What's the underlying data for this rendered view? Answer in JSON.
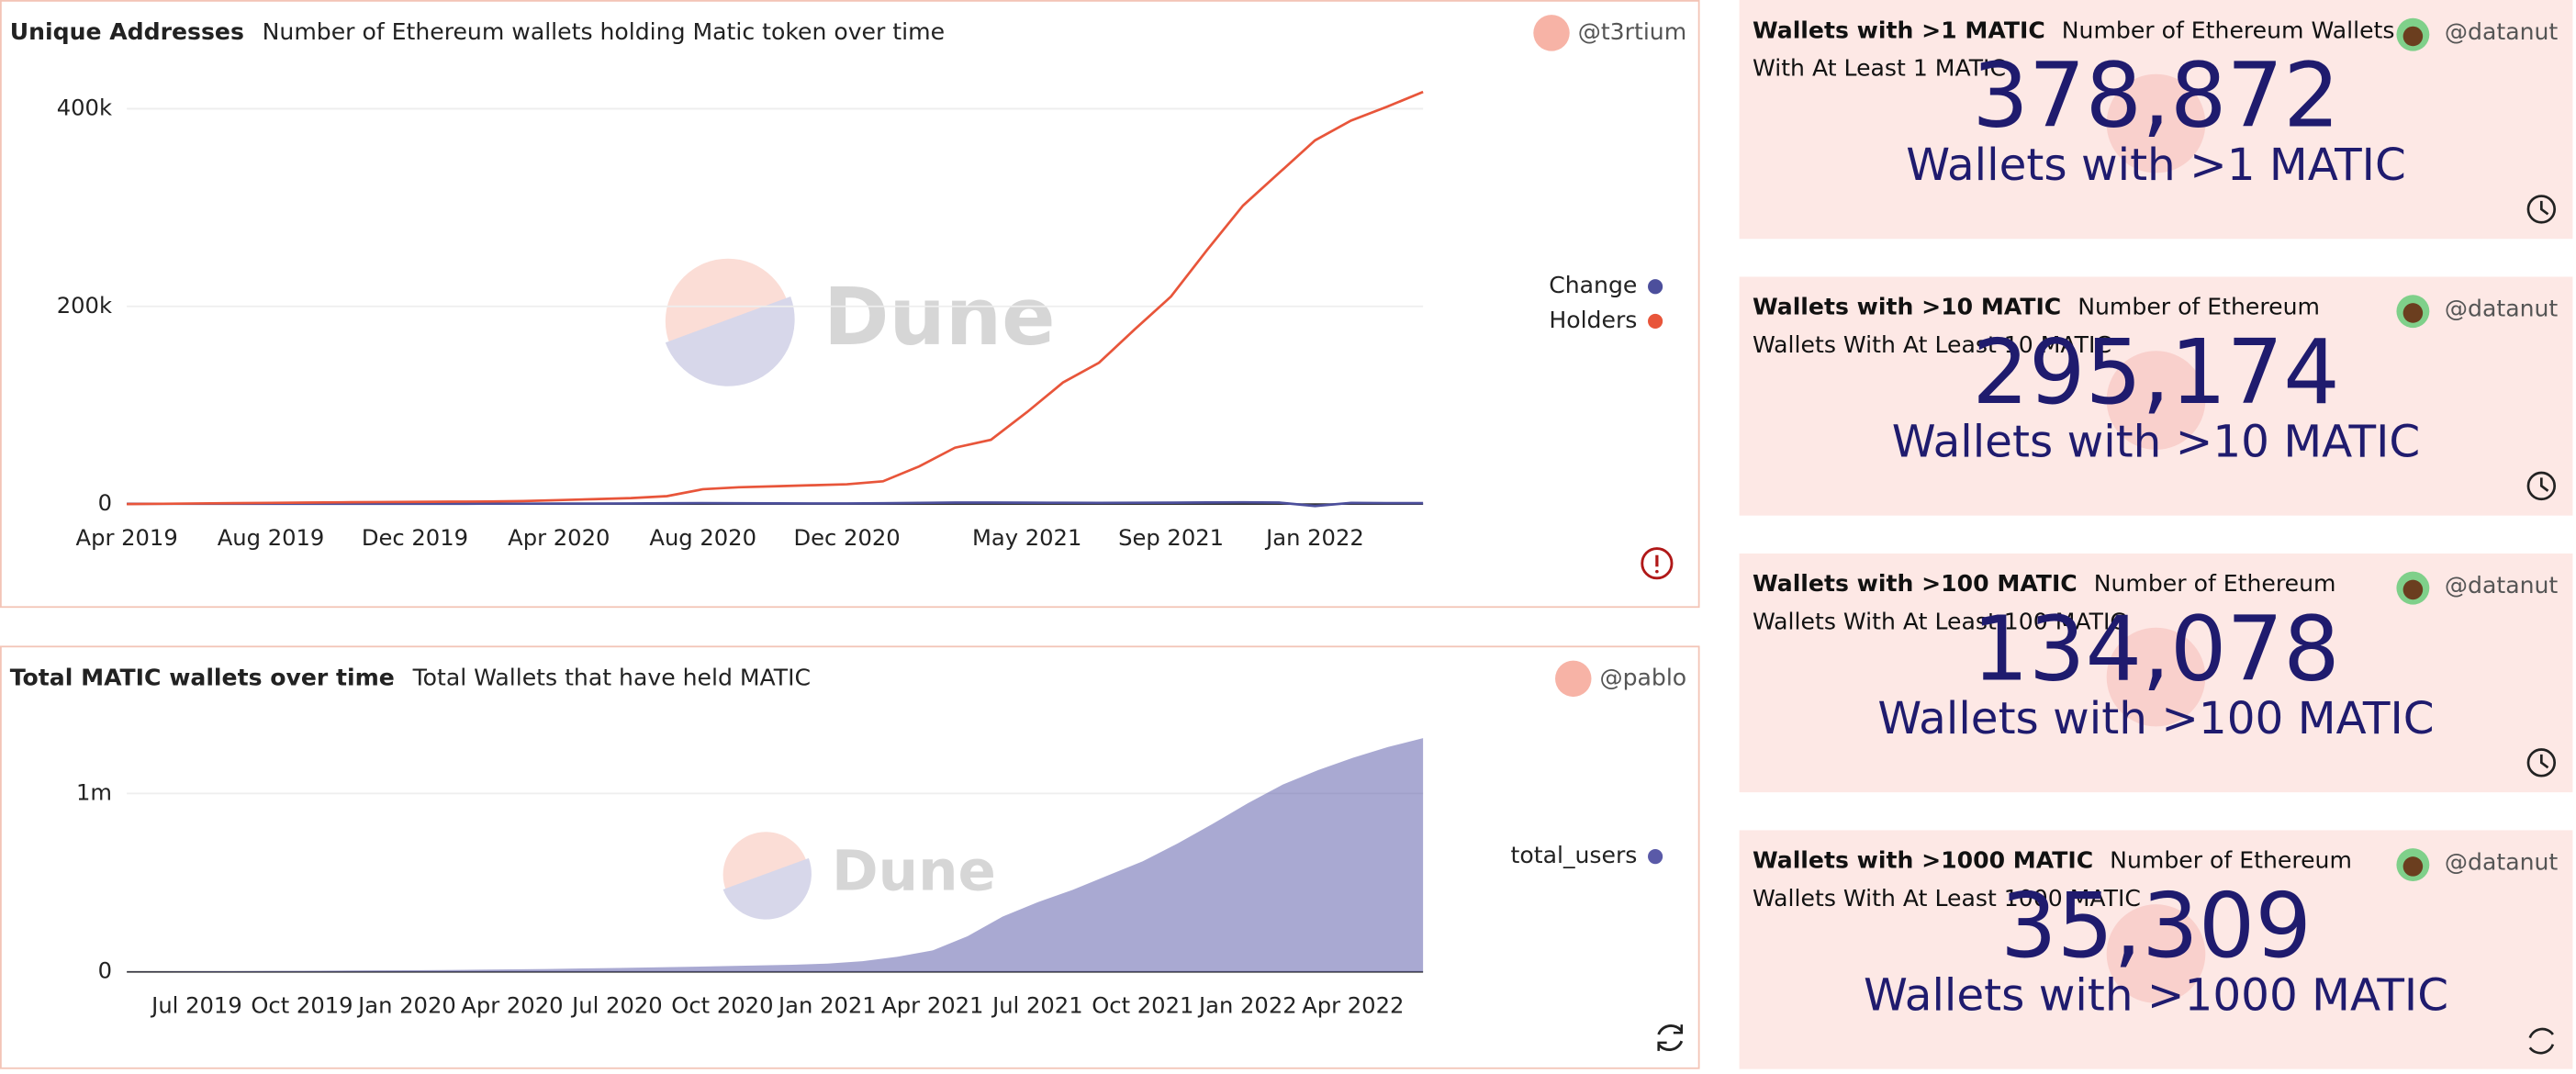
{
  "chart_data": [
    {
      "type": "line",
      "title": "Unique Addresses",
      "subtitle": "Number of Ethereum wallets holding Matic token over time",
      "author": "@t3rtium",
      "x": [
        "Apr 2019",
        "May 2019",
        "Jun 2019",
        "Jul 2019",
        "Aug 2019",
        "Sep 2019",
        "Oct 2019",
        "Nov 2019",
        "Dec 2019",
        "Jan 2020",
        "Feb 2020",
        "Mar 2020",
        "Apr 2020",
        "May 2020",
        "Jun 2020",
        "Jul 2020",
        "Aug 2020",
        "Sep 2020",
        "Oct 2020",
        "Nov 2020",
        "Dec 2020",
        "Jan 2021",
        "Feb 2021",
        "Mar 2021",
        "Apr 2021",
        "May 2021",
        "Jun 2021",
        "Jul 2021",
        "Aug 2021",
        "Sep 2021",
        "Oct 2021",
        "Nov 2021",
        "Dec 2021",
        "Jan 2022",
        "Feb 2022",
        "Mar 2022",
        "Apr 2022"
      ],
      "xticks": [
        "Apr 2019",
        "Aug 2019",
        "Dec 2019",
        "Apr 2020",
        "Aug 2020",
        "Dec 2020",
        "May 2021",
        "Sep 2021",
        "Jan 2022"
      ],
      "series": [
        {
          "name": "Change",
          "color": "#4c4f9c",
          "values": [
            300,
            300,
            300,
            300,
            300,
            300,
            300,
            300,
            300,
            300,
            400,
            400,
            500,
            500,
            600,
            800,
            1000,
            800,
            700,
            600,
            600,
            800,
            1200,
            1500,
            1500,
            1400,
            1300,
            1200,
            1300,
            1400,
            1600,
            1800,
            1500,
            -2000,
            1200,
            1000,
            900
          ]
        },
        {
          "name": "Holders",
          "color": "#e8553a",
          "values": [
            0,
            300,
            600,
            900,
            1200,
            1500,
            1800,
            2000,
            2200,
            2400,
            2600,
            3000,
            4000,
            5000,
            6000,
            8000,
            15000,
            17000,
            18000,
            19000,
            20000,
            23000,
            38000,
            57000,
            65000,
            93000,
            123000,
            143000,
            177000,
            210000,
            257000,
            302000,
            335000,
            368000,
            388000,
            402000,
            417000
          ]
        }
      ],
      "ylim": [
        0,
        420000
      ],
      "yticks": [
        0,
        {
          "value": 200000,
          "label": "200k"
        },
        {
          "value": 400000,
          "label": "400k"
        }
      ],
      "grid": true,
      "legend": "right"
    },
    {
      "type": "area",
      "title": "Total MATIC wallets over time",
      "subtitle": "Total Wallets that have held MATIC",
      "author": "@pablo",
      "x": [
        "May 2019",
        "Jun 2019",
        "Jul 2019",
        "Aug 2019",
        "Sep 2019",
        "Oct 2019",
        "Nov 2019",
        "Dec 2019",
        "Jan 2020",
        "Feb 2020",
        "Mar 2020",
        "Apr 2020",
        "May 2020",
        "Jun 2020",
        "Jul 2020",
        "Aug 2020",
        "Sep 2020",
        "Oct 2020",
        "Nov 2020",
        "Dec 2020",
        "Jan 2021",
        "Feb 2021",
        "Mar 2021",
        "Apr 2021",
        "May 2021",
        "Jun 2021",
        "Jul 2021",
        "Aug 2021",
        "Sep 2021",
        "Oct 2021",
        "Nov 2021",
        "Dec 2021",
        "Jan 2022",
        "Feb 2022",
        "Mar 2022",
        "Apr 2022",
        "May 2022",
        "Jun 2022"
      ],
      "xticks": [
        "Jul 2019",
        "Oct 2019",
        "Jan 2020",
        "Apr 2020",
        "Jul 2020",
        "Oct 2020",
        "Jan 2021",
        "Apr 2021",
        "Jul 2021",
        "Oct 2021",
        "Jan 2022",
        "Apr 2022"
      ],
      "series": [
        {
          "name": "total_users",
          "color": "#5a5aa8",
          "values": [
            1000,
            2000,
            3000,
            4000,
            5000,
            6000,
            7000,
            8000,
            9000,
            10000,
            12000,
            14000,
            16000,
            19000,
            22000,
            25000,
            28000,
            32000,
            36000,
            40000,
            46000,
            60000,
            85000,
            120000,
            200000,
            310000,
            390000,
            460000,
            540000,
            620000,
            720000,
            830000,
            945000,
            1050000,
            1130000,
            1200000,
            1260000,
            1310000
          ]
        }
      ],
      "ylim": [
        0,
        1320000
      ],
      "yticks": [
        0,
        {
          "value": 1000000,
          "label": "1m"
        }
      ],
      "grid": true,
      "legend": "right"
    }
  ],
  "watermark": "Dune",
  "counters": [
    {
      "title": "Wallets with >1 MATIC",
      "description": "Number of Ethereum Wallets With At Least 1 MATIC",
      "author": "@datanut",
      "value": "378,872",
      "label": "Wallets with >1 MATIC"
    },
    {
      "title": "Wallets with >10 MATIC",
      "description": "Number of Ethereum Wallets With At Least 10 MATIC",
      "author": "@datanut",
      "value": "295,174",
      "label": "Wallets with >10 MATIC"
    },
    {
      "title": "Wallets with >100 MATIC",
      "description": "Number of Ethereum Wallets With At Least 100 MATIC",
      "author": "@datanut",
      "value": "134,078",
      "label": "Wallets with >100 MATIC"
    },
    {
      "title": "Wallets with >1000 MATIC",
      "description": "Number of Ethereum Wallets With At Least 1000 MATIC",
      "author": "@datanut",
      "value": "35,309",
      "label": "Wallets with >1000 MATIC"
    }
  ]
}
